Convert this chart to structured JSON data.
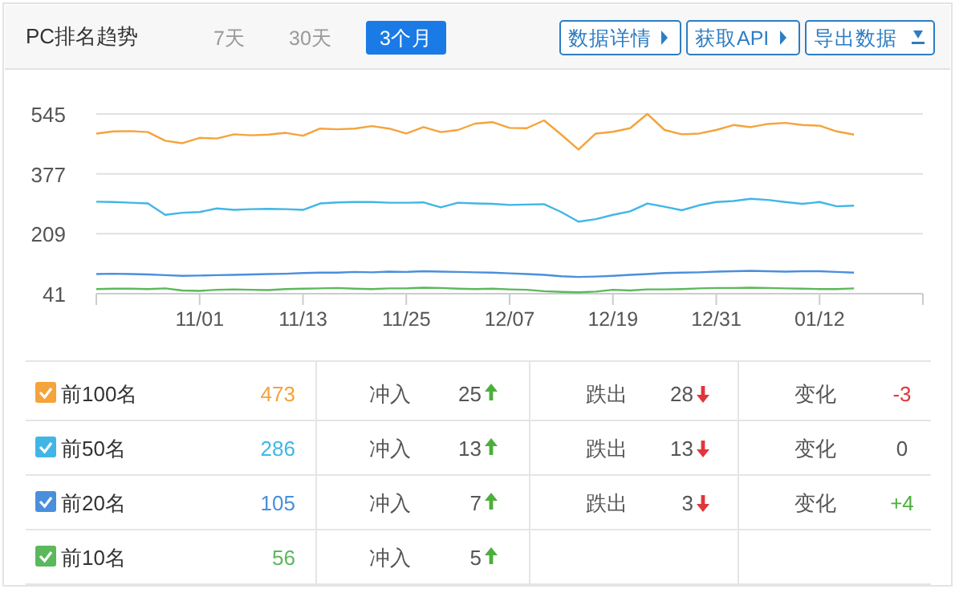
{
  "chart_data": [
    {
      "type": "line",
      "title": "PC排名趋势",
      "annotations": [
        "7天",
        "30天",
        "3个月",
        "数据详情",
        "获取API",
        "导出数据"
      ],
      "categories": [
        null,
        null,
        null,
        null,
        null,
        null,
        "11/01",
        null,
        null,
        null,
        null,
        null,
        "11/13",
        null,
        null,
        null,
        null,
        null,
        "11/25",
        null,
        null,
        null,
        null,
        null,
        "12/07",
        null,
        null,
        null,
        null,
        null,
        "12/19",
        null,
        null,
        null,
        null,
        null,
        "12/31",
        null,
        null,
        null,
        null,
        null,
        "01/12",
        null,
        null,
        null,
        null,
        null,
        null
      ],
      "series": [
        {
          "name": "前100名",
          "color": "#f5a33b",
          "values": [
            490,
            496,
            497,
            494,
            470,
            463,
            478,
            476,
            488,
            485,
            487,
            492,
            484,
            504,
            502,
            504,
            511,
            504,
            490,
            508,
            494,
            500,
            518,
            522,
            506,
            505,
            527,
            487,
            445,
            490,
            495,
            505,
            545,
            500,
            488,
            490,
            500,
            514,
            508,
            517,
            520,
            514,
            512,
            496,
            487,
            null,
            null,
            null,
            null
          ]
        },
        {
          "name": "前50名",
          "color": "#41b6e6",
          "values": [
            299,
            298,
            296,
            294,
            262,
            268,
            270,
            280,
            276,
            278,
            279,
            278,
            276,
            294,
            297,
            298,
            298,
            296,
            296,
            297,
            283,
            296,
            294,
            293,
            290,
            291,
            292,
            270,
            243,
            250,
            262,
            272,
            294,
            285,
            275,
            289,
            298,
            301,
            307,
            304,
            298,
            293,
            298,
            286,
            288,
            null,
            null,
            null,
            null
          ]
        },
        {
          "name": "前20名",
          "color": "#4a8fdc",
          "values": [
            96,
            97,
            96,
            95,
            93,
            91,
            92,
            93,
            94,
            95,
            96,
            97,
            99,
            100,
            100,
            102,
            101,
            103,
            102,
            104,
            103,
            102,
            101,
            100,
            98,
            96,
            94,
            90,
            88,
            89,
            91,
            94,
            96,
            99,
            100,
            101,
            103,
            104,
            105,
            104,
            103,
            104,
            104,
            102,
            100,
            null,
            null,
            null,
            null
          ]
        },
        {
          "name": "前10名",
          "color": "#5cb85c",
          "values": [
            54,
            55,
            55,
            54,
            56,
            50,
            49,
            52,
            53,
            52,
            51,
            54,
            55,
            56,
            57,
            55,
            54,
            56,
            56,
            58,
            57,
            55,
            54,
            55,
            53,
            52,
            48,
            46,
            45,
            47,
            52,
            50,
            53,
            53,
            54,
            56,
            57,
            57,
            58,
            57,
            56,
            55,
            54,
            54,
            56,
            null,
            null,
            null,
            null
          ]
        }
      ],
      "ylim": [
        41,
        545
      ],
      "yticks": [
        41,
        209,
        377,
        545
      ],
      "grid": "y",
      "legend": "bottom",
      "marker": "none",
      "line_style": "solid"
    },
    {
      "type": "other",
      "annotations": [
        "473",
        "冲入",
        "25",
        "跌出",
        "28",
        "变化",
        "-3",
        "286",
        "冲入",
        "13",
        "跌出",
        "13",
        "变化",
        "0",
        "105",
        "冲入",
        "7",
        "跌出",
        "3",
        "变化",
        "+4",
        "56",
        "冲入",
        "5"
      ]
    }
  ]
}
